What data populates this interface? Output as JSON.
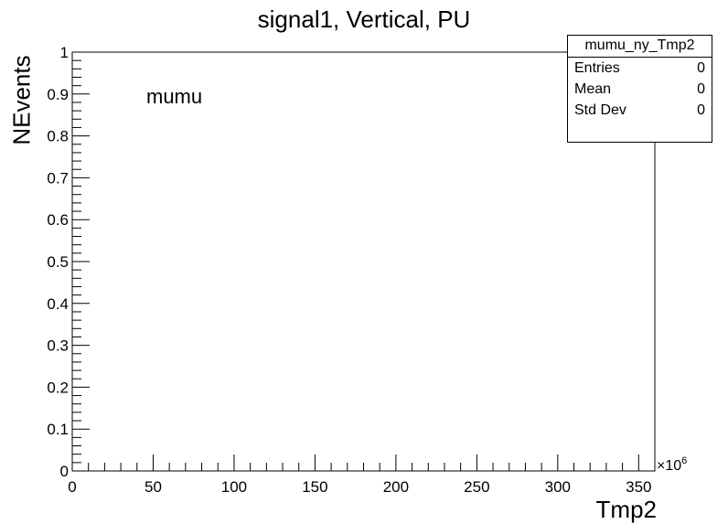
{
  "chart_data": {
    "type": "bar",
    "title": "signal1, Vertical, PU",
    "xlabel": "Tmp2",
    "ylabel": "NEvents",
    "x_exponent_base": "×10",
    "x_exponent_power": "6",
    "xlim": [
      0,
      360
    ],
    "ylim": [
      0,
      1
    ],
    "xticks": [
      "0",
      "50",
      "100",
      "150",
      "200",
      "250",
      "300",
      "350"
    ],
    "xtick_values": [
      0,
      50,
      100,
      150,
      200,
      250,
      300,
      350
    ],
    "yticks": [
      "0",
      "0.1",
      "0.2",
      "0.3",
      "0.4",
      "0.5",
      "0.6",
      "0.7",
      "0.8",
      "0.9",
      "1"
    ],
    "ytick_values": [
      0,
      0.1,
      0.2,
      0.3,
      0.4,
      0.5,
      0.6,
      0.7,
      0.8,
      0.9,
      1
    ],
    "series": [
      {
        "name": "mumu_ny_Tmp2",
        "values": []
      }
    ],
    "annotation": "mumu",
    "stats_box": {
      "name": "mumu_ny_Tmp2",
      "rows": [
        {
          "label": "Entries",
          "value": "0"
        },
        {
          "label": "Mean",
          "value": "0"
        },
        {
          "label": "Std Dev",
          "value": "0"
        }
      ]
    },
    "grid": false
  }
}
